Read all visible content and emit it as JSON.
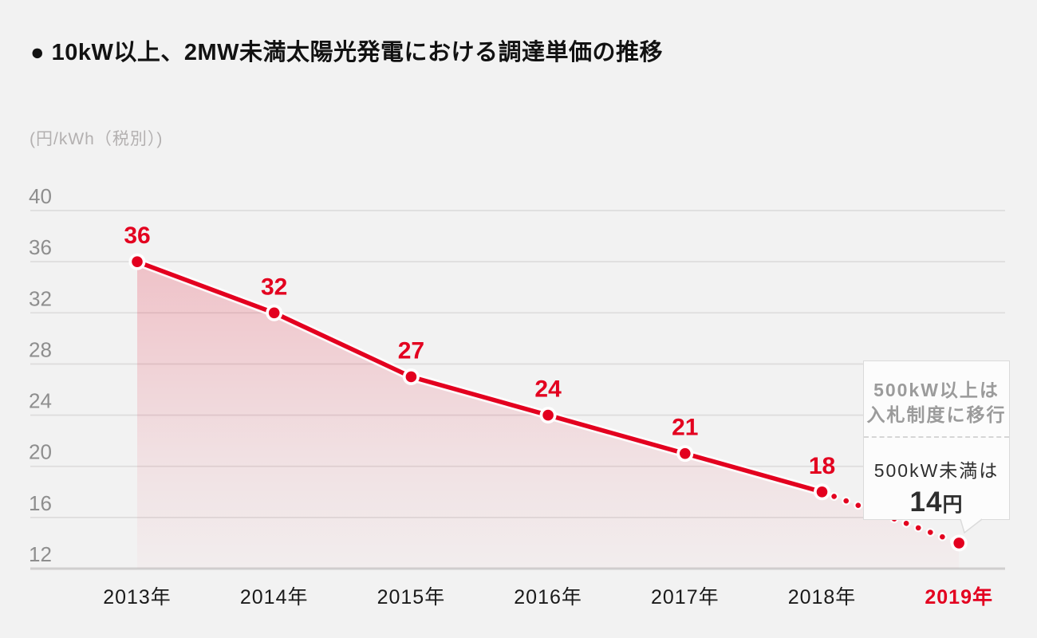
{
  "header": {
    "title": "● 10kW以上、2MW未満太陽光発電における調達単価の推移"
  },
  "colors": {
    "accent_red": "#e3001f",
    "grid": "#dedddd",
    "axis_base": "#d0cfcf",
    "tick_text": "#8e8e8e",
    "xlabel_text": "#1a1a1a",
    "background": "#f2f2f2",
    "callout_gray_text": "#9b9b9b"
  },
  "chart_data": {
    "type": "line",
    "title": "10kW以上、2MW未満太陽光発電における調達単価の推移",
    "unit_label": "(円/kWh（税別）)",
    "categories": [
      "2013年",
      "2014年",
      "2015年",
      "2016年",
      "2017年",
      "2018年",
      "2019年"
    ],
    "values": [
      36,
      32,
      27,
      24,
      21,
      18,
      14
    ],
    "point_labels": [
      "36",
      "32",
      "27",
      "24",
      "21",
      "18",
      ""
    ],
    "yticks": [
      40,
      36,
      32,
      28,
      24,
      20,
      16,
      12
    ],
    "ylim": [
      12,
      40
    ],
    "grid": "horizontal-only",
    "legend": "none",
    "area_fill": "red gradient fading downward",
    "dotted_from_index": 5,
    "highlight_category_index": 6
  },
  "callout": {
    "top_line1": "500kW以上は",
    "top_line2": "入札制度に移行",
    "bottom_line": "500kW未満は",
    "price_value": "14",
    "price_unit": "円"
  }
}
